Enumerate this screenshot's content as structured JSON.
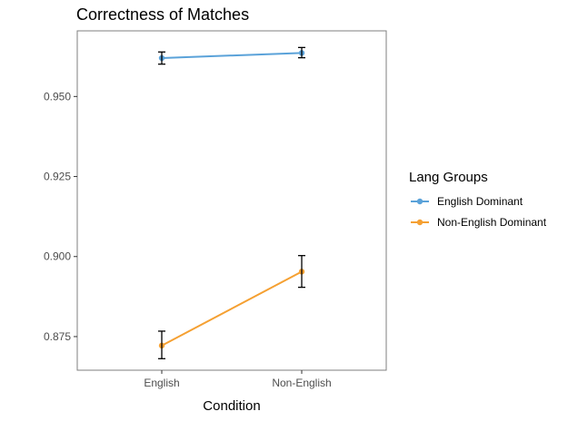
{
  "chart_data": {
    "type": "line",
    "title": "Correctness of Matches",
    "xlabel": "Condition",
    "ylabel": "",
    "categories": [
      "English",
      "Non-English"
    ],
    "ylim": [
      0.8645,
      0.9705
    ],
    "yticks": [
      0.875,
      0.9,
      0.925,
      0.95
    ],
    "ytick_labels": [
      "0.875",
      "0.900",
      "0.925",
      "0.950"
    ],
    "grid": false,
    "legend": {
      "title": "Lang Groups",
      "position": "right"
    },
    "series": [
      {
        "name": "English Dominant",
        "color": "#5aa2d9",
        "values": [
          0.962,
          0.9636
        ],
        "err_low": [
          0.9601,
          0.9621
        ],
        "err_high": [
          0.9639,
          0.9653
        ]
      },
      {
        "name": "Non-English Dominant",
        "color": "#f5a032",
        "values": [
          0.8722,
          0.8953
        ],
        "err_low": [
          0.8681,
          0.8904
        ],
        "err_high": [
          0.8767,
          0.9003
        ]
      }
    ]
  }
}
